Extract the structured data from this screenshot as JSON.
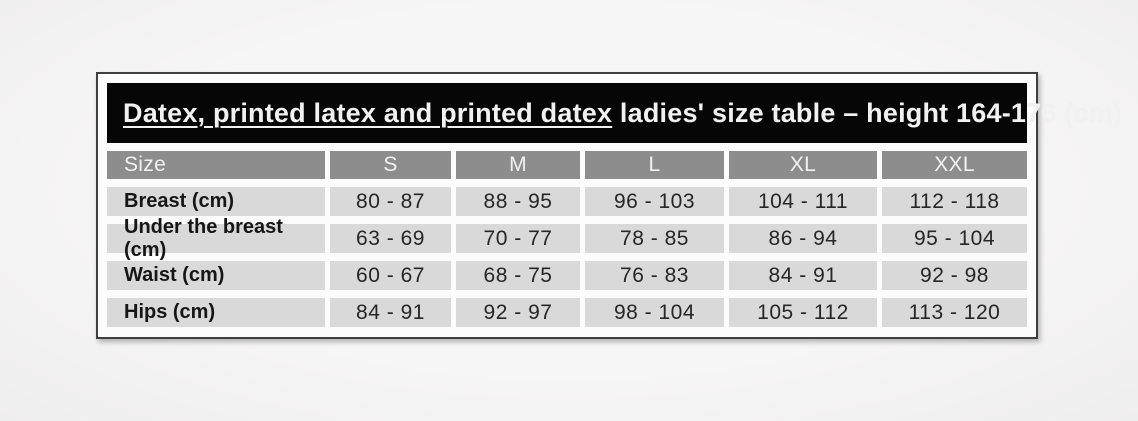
{
  "table": {
    "title": {
      "underlined": "Datex, printed latex and printed datex",
      "rest": " ladies' size table – height 164-176 (cm)"
    },
    "header": {
      "label": "Size",
      "sizes": [
        "S",
        "M",
        "L",
        "XL",
        "XXL"
      ]
    },
    "rows": [
      {
        "label": "Breast (cm)",
        "values": [
          "80 - 87",
          "88 - 95",
          "96 - 103",
          "104 - 111",
          "112 - 118"
        ]
      },
      {
        "label": "Under the breast (cm)",
        "values": [
          "63 - 69",
          "70 - 77",
          "78 - 85",
          "86 - 94",
          "95 - 104"
        ]
      },
      {
        "label": "Waist (cm)",
        "values": [
          "60 - 67",
          "68 - 75",
          "76 - 83",
          "84 - 91",
          "92 - 98"
        ]
      },
      {
        "label": "Hips (cm)",
        "values": [
          "84 - 91",
          "92 - 97",
          "98 - 104",
          "105 - 112",
          "113 - 120"
        ]
      }
    ],
    "colors": {
      "title_bar_bg": "#060606",
      "title_text": "#f1f1f1",
      "header_row_bg": "#8d8d8d",
      "data_row_bg": "#d9d9d9",
      "frame_border": "#3f3f3f",
      "page_bg": "#f5f4f4"
    }
  }
}
